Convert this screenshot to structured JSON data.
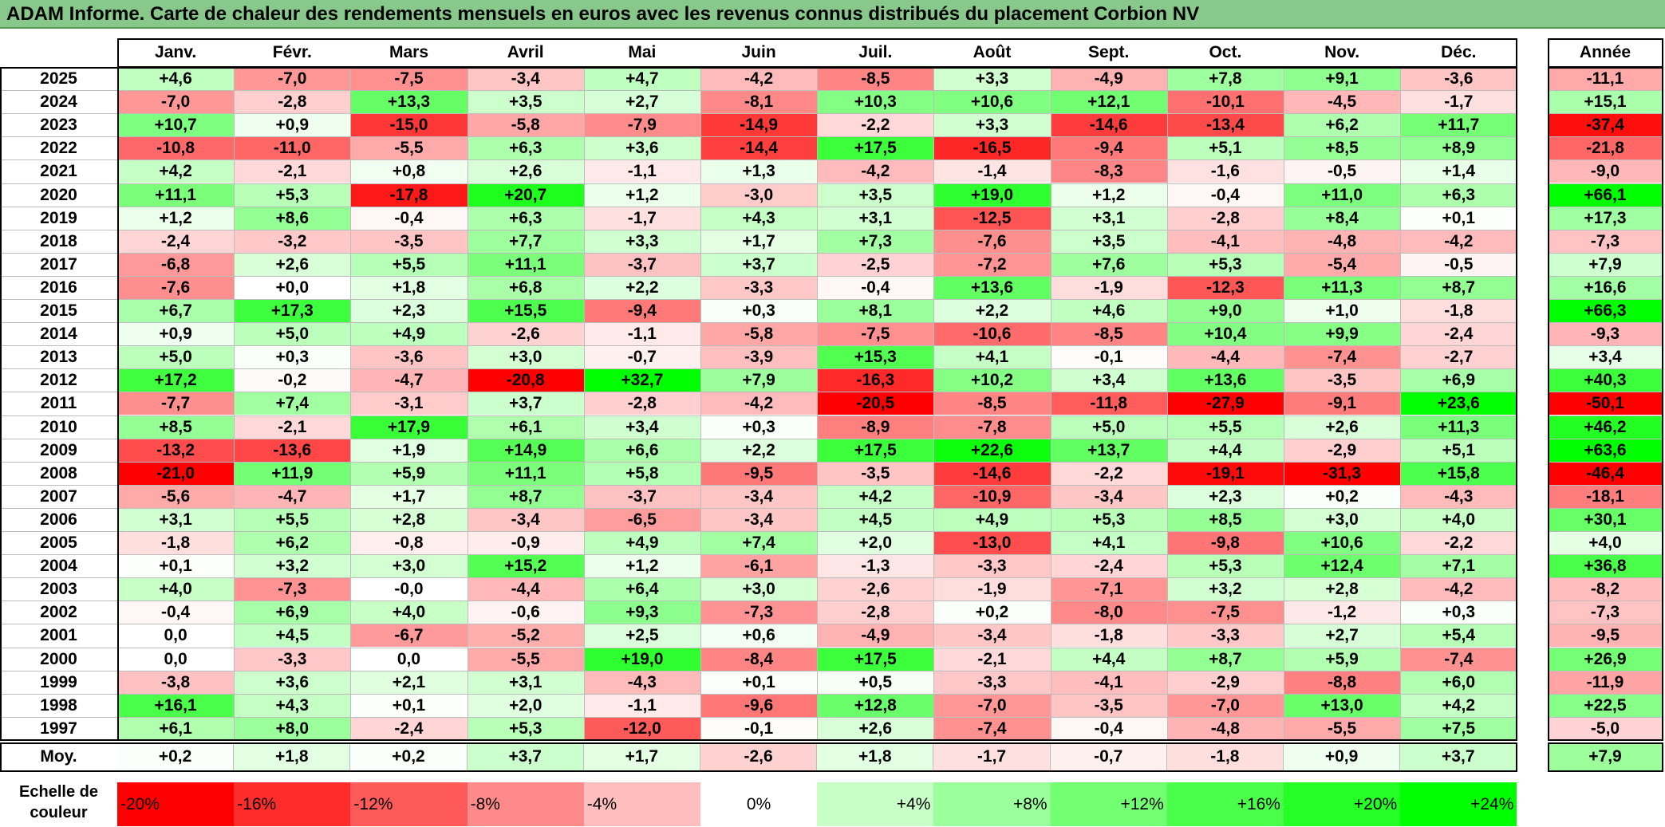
{
  "title": "ADAM Informe. Carte de chaleur des rendements mensuels en euros avec les revenus connus distribués du placement Corbion NV",
  "chart_data": {
    "type": "heatmap",
    "columns": [
      "Janv.",
      "Févr.",
      "Mars",
      "Avril",
      "Mai",
      "Juin",
      "Juil.",
      "Août",
      "Sept.",
      "Oct.",
      "Nov.",
      "Déc."
    ],
    "year_column": "Année",
    "rows": [
      {
        "year": "2025",
        "values": [
          "+4,6",
          "-7,0",
          "-7,5",
          "-3,4",
          "+4,7",
          "-4,2",
          "-8,5",
          "+3,3",
          "-4,9",
          "+7,8",
          "+9,1",
          "-3,6"
        ],
        "total": "-11,1"
      },
      {
        "year": "2024",
        "values": [
          "-7,0",
          "-2,8",
          "+13,3",
          "+3,5",
          "+2,7",
          "-8,1",
          "+10,3",
          "+10,6",
          "+12,1",
          "-10,1",
          "-4,5",
          "-1,7"
        ],
        "total": "+15,1"
      },
      {
        "year": "2023",
        "values": [
          "+10,7",
          "+0,9",
          "-15,0",
          "-5,8",
          "-7,9",
          "-14,9",
          "-2,2",
          "+3,3",
          "-14,6",
          "-13,4",
          "+6,2",
          "+11,7"
        ],
        "total": "-37,4"
      },
      {
        "year": "2022",
        "values": [
          "-10,8",
          "-11,0",
          "-5,5",
          "+6,3",
          "+3,6",
          "-14,4",
          "+17,5",
          "-16,5",
          "-9,4",
          "+5,1",
          "+8,5",
          "+8,9"
        ],
        "total": "-21,8"
      },
      {
        "year": "2021",
        "values": [
          "+4,2",
          "-2,1",
          "+0,8",
          "+2,6",
          "-1,1",
          "+1,3",
          "-4,2",
          "-1,4",
          "-8,3",
          "-1,6",
          "-0,5",
          "+1,4"
        ],
        "total": "-9,0"
      },
      {
        "year": "2020",
        "values": [
          "+11,1",
          "+5,3",
          "-17,8",
          "+20,7",
          "+1,2",
          "-3,0",
          "+3,5",
          "+19,0",
          "+1,2",
          "-0,4",
          "+11,0",
          "+6,3"
        ],
        "total": "+66,1"
      },
      {
        "year": "2019",
        "values": [
          "+1,2",
          "+8,6",
          "-0,4",
          "+6,3",
          "-1,7",
          "+4,3",
          "+3,1",
          "-12,5",
          "+3,1",
          "-2,8",
          "+8,4",
          "+0,1"
        ],
        "total": "+17,3"
      },
      {
        "year": "2018",
        "values": [
          "-2,4",
          "-3,2",
          "-3,5",
          "+7,7",
          "+3,3",
          "+1,7",
          "+7,3",
          "-7,6",
          "+3,5",
          "-4,1",
          "-4,8",
          "-4,2"
        ],
        "total": "-7,3"
      },
      {
        "year": "2017",
        "values": [
          "-6,8",
          "+2,6",
          "+5,5",
          "+11,1",
          "-3,7",
          "+3,7",
          "-2,5",
          "-7,2",
          "+7,6",
          "+5,3",
          "-5,4",
          "-0,5"
        ],
        "total": "+7,9"
      },
      {
        "year": "2016",
        "values": [
          "-7,6",
          "+0,0",
          "+1,8",
          "+6,8",
          "+2,2",
          "-3,3",
          "-0,4",
          "+13,6",
          "-1,9",
          "-12,3",
          "+11,3",
          "+8,7"
        ],
        "total": "+16,6"
      },
      {
        "year": "2015",
        "values": [
          "+6,7",
          "+17,3",
          "+2,3",
          "+15,5",
          "-9,4",
          "+0,3",
          "+8,1",
          "+2,2",
          "+4,6",
          "+9,0",
          "+1,0",
          "-1,8"
        ],
        "total": "+66,3"
      },
      {
        "year": "2014",
        "values": [
          "+0,9",
          "+5,0",
          "+4,9",
          "-2,6",
          "-1,1",
          "-5,8",
          "-7,5",
          "-10,6",
          "-8,5",
          "+10,4",
          "+9,9",
          "-2,4"
        ],
        "total": "-9,3"
      },
      {
        "year": "2013",
        "values": [
          "+5,0",
          "+0,3",
          "-3,6",
          "+3,0",
          "-0,7",
          "-3,9",
          "+15,3",
          "+4,1",
          "-0,1",
          "-4,4",
          "-7,4",
          "-2,7"
        ],
        "total": "+3,4"
      },
      {
        "year": "2012",
        "values": [
          "+17,2",
          "-0,2",
          "-4,7",
          "-20,8",
          "+32,7",
          "+7,9",
          "-16,3",
          "+10,2",
          "+3,4",
          "+13,6",
          "-3,5",
          "+6,9"
        ],
        "total": "+40,3"
      },
      {
        "year": "2011",
        "values": [
          "-7,7",
          "+7,4",
          "-3,1",
          "+3,7",
          "-2,8",
          "-4,2",
          "-20,5",
          "-8,5",
          "-11,8",
          "-27,9",
          "-9,1",
          "+23,6"
        ],
        "total": "-50,1"
      },
      {
        "year": "2010",
        "values": [
          "+8,5",
          "-2,1",
          "+17,9",
          "+6,1",
          "+3,4",
          "+0,3",
          "-8,9",
          "-7,8",
          "+5,0",
          "+5,5",
          "+2,6",
          "+11,3"
        ],
        "total": "+46,2"
      },
      {
        "year": "2009",
        "values": [
          "-13,2",
          "-13,6",
          "+1,9",
          "+14,9",
          "+6,6",
          "+2,2",
          "+17,5",
          "+22,6",
          "+13,7",
          "+4,4",
          "-2,9",
          "+5,1"
        ],
        "total": "+63,6"
      },
      {
        "year": "2008",
        "values": [
          "-21,0",
          "+11,9",
          "+5,9",
          "+11,1",
          "+5,8",
          "-9,5",
          "-3,5",
          "-14,6",
          "-2,2",
          "-19,1",
          "-31,3",
          "+15,8"
        ],
        "total": "-46,4"
      },
      {
        "year": "2007",
        "values": [
          "-5,6",
          "-4,7",
          "+1,7",
          "+8,7",
          "-3,7",
          "-3,4",
          "+4,2",
          "-10,9",
          "-3,4",
          "+2,3",
          "+0,2",
          "-4,3"
        ],
        "total": "-18,1"
      },
      {
        "year": "2006",
        "values": [
          "+3,1",
          "+5,5",
          "+2,8",
          "-3,4",
          "-6,5",
          "-3,4",
          "+4,5",
          "+4,9",
          "+5,3",
          "+8,5",
          "+3,0",
          "+4,0"
        ],
        "total": "+30,1"
      },
      {
        "year": "2005",
        "values": [
          "-1,8",
          "+6,2",
          "-0,8",
          "-0,9",
          "+4,9",
          "+7,4",
          "+2,0",
          "-13,0",
          "+4,1",
          "-9,8",
          "+10,6",
          "-2,2"
        ],
        "total": "+4,0"
      },
      {
        "year": "2004",
        "values": [
          "+0,1",
          "+3,2",
          "+3,0",
          "+15,2",
          "+1,2",
          "-6,1",
          "-1,3",
          "-3,3",
          "-2,4",
          "+5,3",
          "+12,4",
          "+7,1"
        ],
        "total": "+36,8"
      },
      {
        "year": "2003",
        "values": [
          "+4,0",
          "-7,3",
          "-0,0",
          "-4,4",
          "+6,4",
          "+3,0",
          "-2,6",
          "-1,9",
          "-7,1",
          "+3,2",
          "+2,8",
          "-4,2"
        ],
        "total": "-8,2"
      },
      {
        "year": "2002",
        "values": [
          "-0,4",
          "+6,9",
          "+4,0",
          "-0,6",
          "+9,3",
          "-7,3",
          "-2,8",
          "+0,2",
          "-8,0",
          "-7,5",
          "-1,2",
          "+0,3"
        ],
        "total": "-7,3"
      },
      {
        "year": "2001",
        "values": [
          "0,0",
          "+4,5",
          "-6,7",
          "-5,2",
          "+2,5",
          "+0,6",
          "-4,9",
          "-3,4",
          "-1,8",
          "-3,3",
          "+2,7",
          "+5,4"
        ],
        "total": "-9,5"
      },
      {
        "year": "2000",
        "values": [
          "0,0",
          "-3,3",
          "0,0",
          "-5,5",
          "+19,0",
          "-8,4",
          "+17,5",
          "-2,1",
          "+4,4",
          "+8,7",
          "+5,9",
          "-7,4"
        ],
        "total": "+26,9"
      },
      {
        "year": "1999",
        "values": [
          "-3,8",
          "+3,6",
          "+2,1",
          "+3,1",
          "-4,3",
          "+0,1",
          "+0,5",
          "-3,3",
          "-4,1",
          "-2,9",
          "-8,8",
          "+6,0"
        ],
        "total": "-11,9"
      },
      {
        "year": "1998",
        "values": [
          "+16,1",
          "+4,3",
          "+0,1",
          "+2,0",
          "-1,1",
          "-9,6",
          "+12,8",
          "-7,0",
          "-3,5",
          "-7,0",
          "+13,0",
          "+4,2"
        ],
        "total": "+22,5"
      },
      {
        "year": "1997",
        "values": [
          "+6,1",
          "+8,0",
          "-2,4",
          "+5,3",
          "-12,0",
          "-0,1",
          "+2,6",
          "-7,4",
          "-0,4",
          "-4,8",
          "-5,5",
          "+7,5"
        ],
        "total": "-5,0"
      }
    ],
    "average": {
      "label": "Moy.",
      "values": [
        "+0,2",
        "+1,8",
        "+0,2",
        "+3,7",
        "+1,7",
        "-2,6",
        "+1,8",
        "-1,7",
        "-0,7",
        "-1,8",
        "+0,9",
        "+3,7"
      ],
      "total": "+7,9"
    },
    "scale": {
      "label": "Echelle de couleur",
      "steps": [
        "-20%",
        "-16%",
        "-12%",
        "-8%",
        "-4%",
        "0%",
        "+4%",
        "+8%",
        "+12%",
        "+16%",
        "+20%",
        "+24%"
      ]
    },
    "colors": {
      "negative": "#ff0000",
      "neutral": "#ffffff",
      "positive": "#00ff00",
      "title_bg": "#88c98b"
    }
  }
}
